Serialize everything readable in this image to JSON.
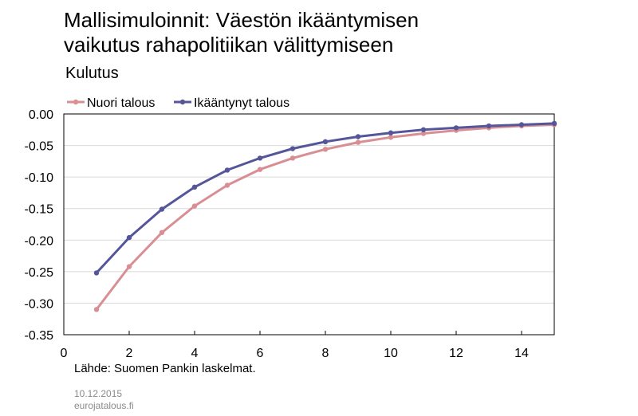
{
  "header": {
    "title_line1": "Mallisimuloinnit: Väestön ikääntymisen",
    "title_line2": "vaikutus rahapolitiikan välittymiseen",
    "subtitle": "Kulutus"
  },
  "footer": {
    "source": "Lähde: Suomen Pankin laskelmat.",
    "date": "10.12.2015",
    "site": "eurojatalous.fi"
  },
  "chart_data": {
    "type": "line",
    "title": "Kulutus",
    "xlabel": "",
    "ylabel": "",
    "xlim": [
      0,
      15
    ],
    "ylim": [
      -0.35,
      0.0
    ],
    "x_ticks": [
      0,
      2,
      4,
      6,
      8,
      10,
      12,
      14
    ],
    "y_ticks": [
      0.0,
      -0.05,
      -0.1,
      -0.15,
      -0.2,
      -0.25,
      -0.3,
      -0.35
    ],
    "x_tick_labels": [
      "0",
      "2",
      "4",
      "6",
      "8",
      "10",
      "12",
      "14"
    ],
    "y_tick_labels": [
      "0.00",
      "-0.05",
      "-0.10",
      "-0.15",
      "-0.20",
      "-0.25",
      "-0.30",
      "-0.35"
    ],
    "grid": true,
    "legend_position": "top-left",
    "x": [
      1,
      2,
      3,
      4,
      5,
      6,
      7,
      8,
      9,
      10,
      11,
      12,
      13,
      14,
      15
    ],
    "series": [
      {
        "name": "Nuori talous",
        "color": "#d98e94",
        "values": [
          -0.31,
          -0.242,
          -0.188,
          -0.146,
          -0.113,
          -0.088,
          -0.07,
          -0.056,
          -0.045,
          -0.037,
          -0.031,
          -0.026,
          -0.022,
          -0.019,
          -0.017
        ]
      },
      {
        "name": "Ikääntynyt talous",
        "color": "#55569a",
        "values": [
          -0.252,
          -0.196,
          -0.151,
          -0.116,
          -0.089,
          -0.07,
          -0.055,
          -0.044,
          -0.036,
          -0.03,
          -0.025,
          -0.022,
          -0.019,
          -0.017,
          -0.015
        ]
      }
    ]
  }
}
